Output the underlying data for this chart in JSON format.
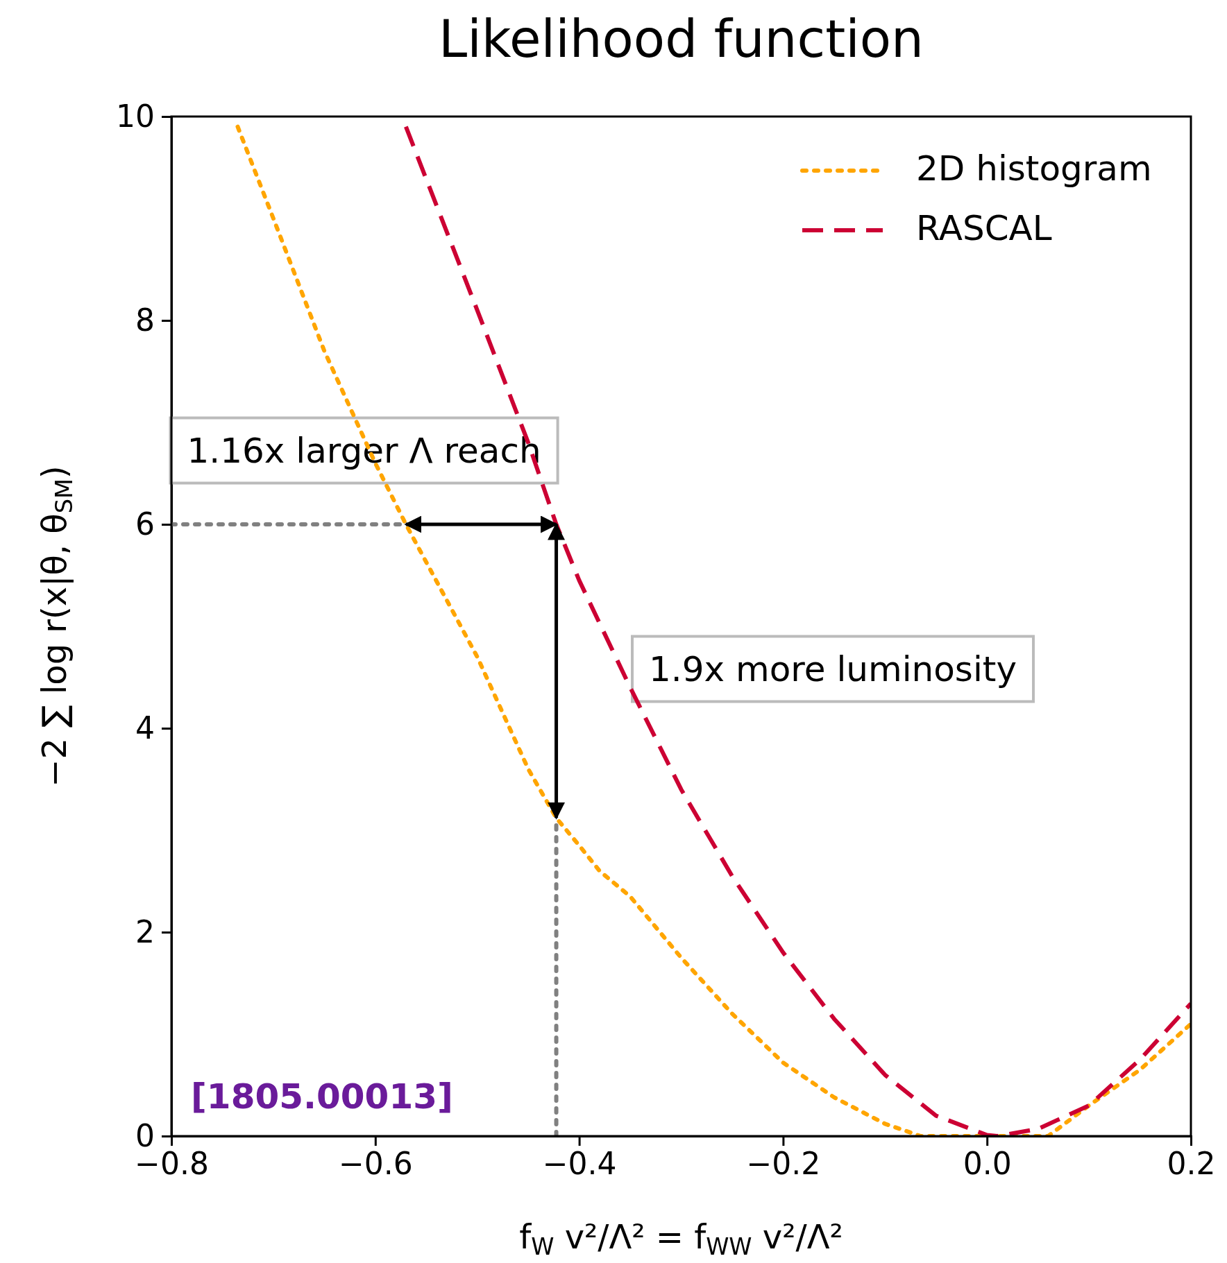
{
  "chart_data": {
    "type": "line",
    "title": "Likelihood function",
    "xlabel": "f$_{W}$ v²/Λ² = f$_{WW}$ v²/Λ²",
    "ylabel": "−2 ∑ log r(x|θ, θ$_{SM}$)",
    "xlim": [
      -0.8,
      0.2
    ],
    "ylim": [
      0,
      10
    ],
    "xticks": [
      {
        "value": -0.8,
        "label": "−0.8"
      },
      {
        "value": -0.6,
        "label": "−0.6"
      },
      {
        "value": -0.4,
        "label": "−0.4"
      },
      {
        "value": -0.2,
        "label": "−0.2"
      },
      {
        "value": 0,
        "label": "0.0"
      },
      {
        "value": 0.2,
        "label": "0.2"
      }
    ],
    "yticks": [
      0,
      2,
      4,
      6,
      8,
      10
    ],
    "grid": false,
    "legend": "top right",
    "series": [
      {
        "name": "2D histogram",
        "color": "#ffa500",
        "line_style": "dotted",
        "x": [
          -0.735,
          -0.7,
          -0.65,
          -0.6,
          -0.57,
          -0.5,
          -0.45,
          -0.4225,
          -0.4,
          -0.38,
          -0.35,
          -0.3,
          -0.25,
          -0.2,
          -0.15,
          -0.1,
          -0.065,
          0,
          0.06,
          0.1,
          0.15,
          0.2
        ],
        "values": [
          9.9,
          9.0,
          7.7,
          6.6,
          6.0,
          4.7,
          3.6,
          3.12,
          2.85,
          2.6,
          2.35,
          1.75,
          1.2,
          0.72,
          0.38,
          0.12,
          0,
          0,
          0,
          0.3,
          0.65,
          1.1
        ]
      },
      {
        "name": "RASCAL",
        "color": "#cc0033",
        "line_style": "dashed",
        "x": [
          -0.57,
          -0.5,
          -0.45,
          -0.4225,
          -0.4,
          -0.35,
          -0.3,
          -0.25,
          -0.2,
          -0.15,
          -0.1,
          -0.05,
          0,
          0.01,
          0.05,
          0.1,
          0.15,
          0.2
        ],
        "values": [
          9.9,
          8.1,
          6.8,
          6.0,
          5.45,
          4.4,
          3.4,
          2.55,
          1.8,
          1.15,
          0.6,
          0.2,
          0.01,
          0,
          0.07,
          0.3,
          0.75,
          1.3
        ]
      },
      {
        "color": "#808080",
        "line_style": "dotted",
        "x": [
          -0.8,
          -0.57
        ],
        "values": [
          6,
          6
        ]
      },
      {
        "color": "#808080",
        "line_style": "dotted",
        "x": [
          -0.4225,
          -0.4225
        ],
        "values": [
          0,
          3.12
        ]
      }
    ],
    "annotations": [
      {
        "text": "1.16x larger Λ reach",
        "x": -0.4225,
        "y": 6
      },
      "1.9x more luminosity",
      "[1805.00013]"
    ]
  }
}
